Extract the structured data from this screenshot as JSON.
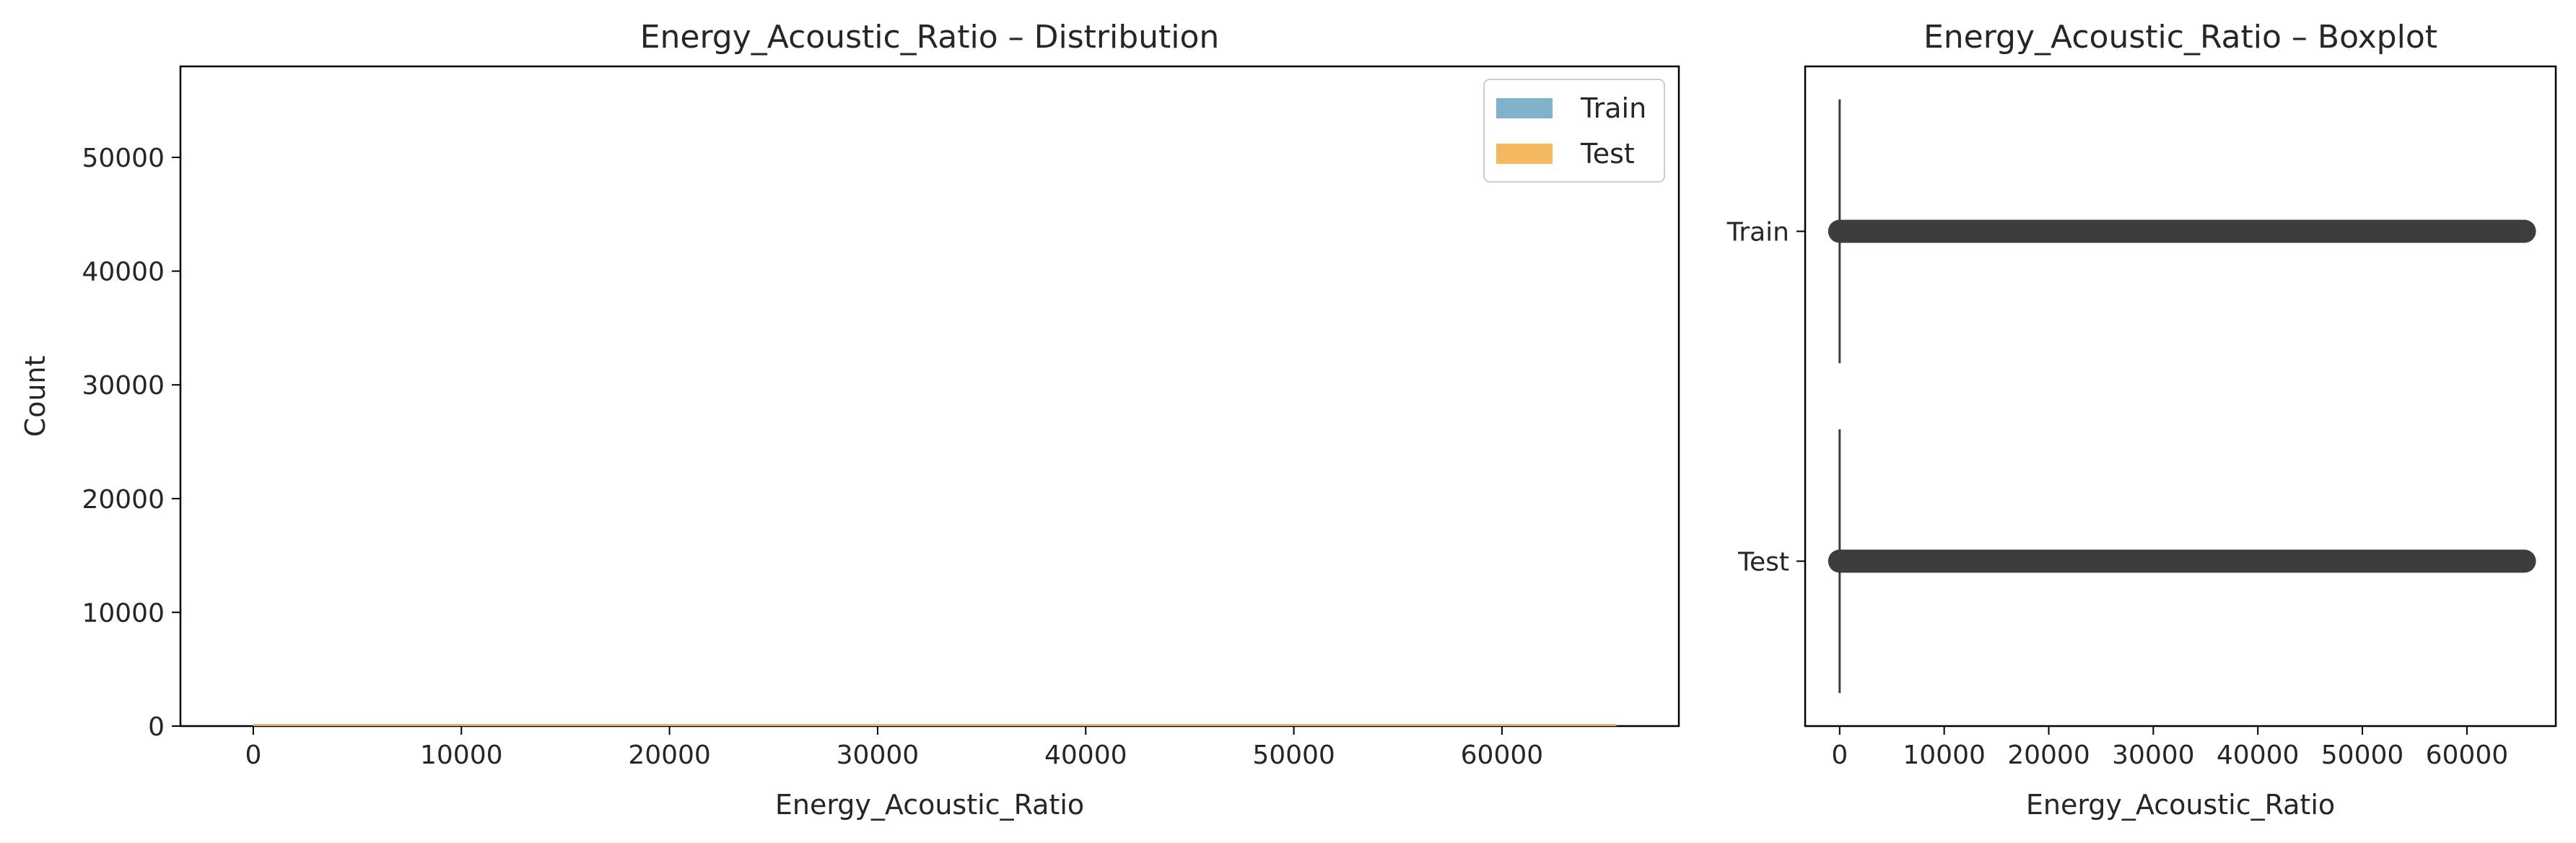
{
  "chart_data": [
    {
      "type": "histogram",
      "title": "Energy_Acoustic_Ratio – Distribution",
      "xlabel": "Energy_Acoustic_Ratio",
      "ylabel": "Count",
      "xlim": [
        -3500,
        68500
      ],
      "ylim": [
        0,
        58000
      ],
      "xticks": [
        0,
        10000,
        20000,
        30000,
        40000,
        50000,
        60000
      ],
      "yticks": [
        0,
        10000,
        20000,
        30000,
        40000,
        50000
      ],
      "legend_position": "top-right",
      "series": [
        {
          "name": "Train",
          "color": "#7fb3cb",
          "x_range": [
            0,
            65500
          ],
          "max_count": 100
        },
        {
          "name": "Test",
          "color": "#f5b85e",
          "x_range": [
            0,
            65500
          ],
          "max_count": 100
        }
      ],
      "grid": false
    },
    {
      "type": "boxplot",
      "title": "Energy_Acoustic_Ratio – Boxplot",
      "xlabel": "Energy_Acoustic_Ratio",
      "xlim": [
        -3300,
        68500
      ],
      "xticks": [
        0,
        10000,
        20000,
        30000,
        40000,
        50000,
        60000
      ],
      "categories": [
        "Train",
        "Test"
      ],
      "whisker_color": "#3d3d3d",
      "boxes": [
        {
          "name": "Train",
          "median": 0,
          "q1": 0,
          "q3": 0,
          "whisker_low": 0,
          "whisker_high": 0,
          "outlier_range": [
            0,
            65500
          ]
        },
        {
          "name": "Test",
          "median": 0,
          "q1": 0,
          "q3": 0,
          "whisker_low": 0,
          "whisker_high": 0,
          "outlier_range": [
            0,
            65500
          ]
        }
      ],
      "grid": false
    }
  ]
}
